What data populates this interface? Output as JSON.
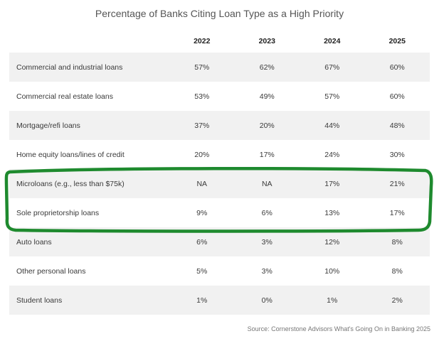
{
  "chart_data": {
    "type": "table",
    "title": "Percentage of Banks Citing Loan Type as a High Priority",
    "columns": [
      "2022",
      "2023",
      "2024",
      "2025"
    ],
    "rows": [
      {
        "label": "Commercial and industrial loans",
        "values": [
          "57%",
          "62%",
          "67%",
          "60%"
        ]
      },
      {
        "label": "Commercial real estate loans",
        "values": [
          "53%",
          "49%",
          "57%",
          "60%"
        ]
      },
      {
        "label": "Mortgage/refi loans",
        "values": [
          "37%",
          "20%",
          "44%",
          "48%"
        ]
      },
      {
        "label": "Home equity loans/lines of credit",
        "values": [
          "20%",
          "17%",
          "24%",
          "30%"
        ]
      },
      {
        "label": "Microloans (e.g., less than $75k)",
        "values": [
          "NA",
          "NA",
          "17%",
          "21%"
        ]
      },
      {
        "label": "Sole proprietorship loans",
        "values": [
          "9%",
          "6%",
          "13%",
          "17%"
        ]
      },
      {
        "label": "Auto loans",
        "values": [
          "6%",
          "3%",
          "12%",
          "8%"
        ]
      },
      {
        "label": "Other personal loans",
        "values": [
          "5%",
          "3%",
          "10%",
          "8%"
        ]
      },
      {
        "label": "Student loans",
        "values": [
          "1%",
          "0%",
          "1%",
          "2%"
        ]
      }
    ],
    "highlighted_rows": [
      "Microloans (e.g., less than $75k)",
      "Sole proprietorship loans"
    ],
    "source": "Source: Cornerstone Advisors What's Going On in Banking 2025"
  },
  "colors": {
    "highlight": "#1e8a2e",
    "stripe": "#f1f1f1"
  }
}
